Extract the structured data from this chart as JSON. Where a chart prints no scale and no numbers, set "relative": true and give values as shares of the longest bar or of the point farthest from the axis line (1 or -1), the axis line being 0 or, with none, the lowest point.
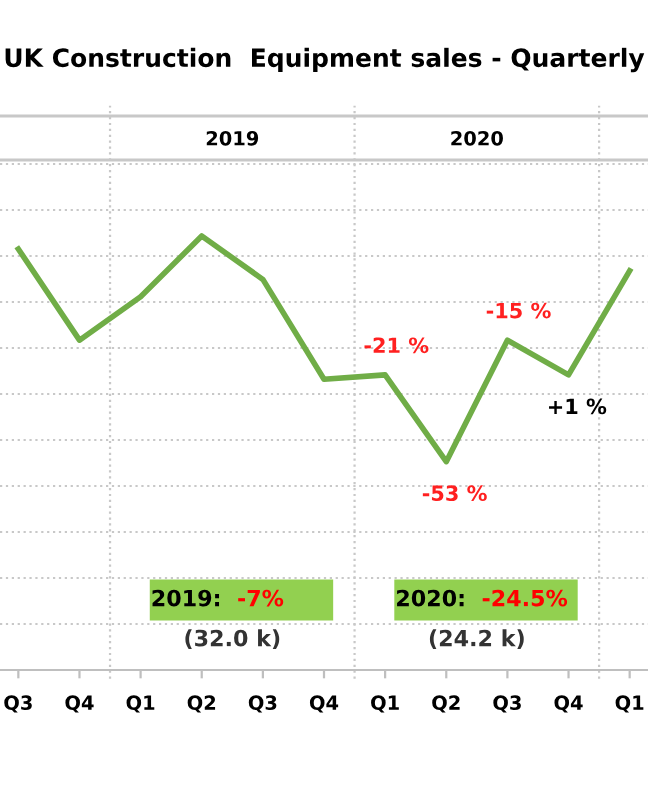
{
  "chart_data": {
    "type": "line",
    "title": "UK Construction  Equipment sales - Quarterly",
    "categories": [
      "Q3",
      "Q4",
      "Q1",
      "Q2",
      "Q3",
      "Q4",
      "Q1",
      "Q2",
      "Q3",
      "Q4",
      "Q1"
    ],
    "series": [
      {
        "color": "#70ad47",
        "values": [
          0.97,
          0.76,
          0.86,
          1,
          0.9,
          0.67,
          0.68,
          0.48,
          0.76,
          0.68,
          0.92
        ]
      }
    ],
    "relative": true,
    "grid": "y",
    "marker": "none",
    "line_style": "solid",
    "annotations": [
      "2019",
      "2020",
      "2019:  -7%",
      "2020:  -24.5%",
      "(32.0 k)",
      "(24.2 k)",
      "-21 %",
      "-53 %",
      "-15 %",
      "+1 %"
    ]
  }
}
